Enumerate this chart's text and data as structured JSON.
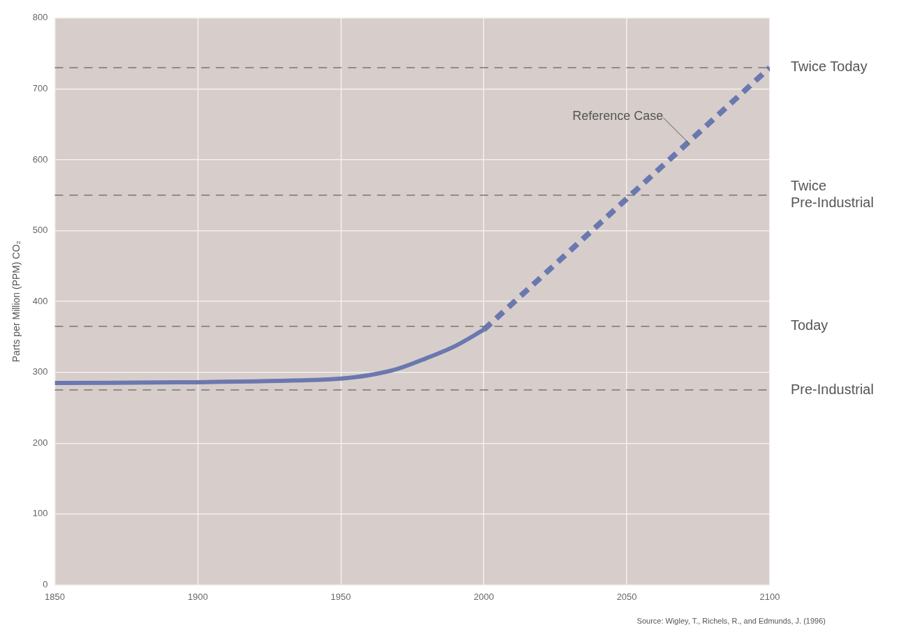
{
  "chart_data": {
    "type": "line",
    "ylabel": "Parts per Million (PPM) CO₂",
    "xlim": [
      1850,
      2100
    ],
    "xticks": [
      1850,
      1900,
      1950,
      2000,
      2050,
      2100
    ],
    "ylim": [
      0,
      800
    ],
    "yticks": [
      0,
      100,
      200,
      300,
      400,
      500,
      600,
      700,
      800
    ],
    "grid": true,
    "legend": false,
    "marker": "none",
    "series": [
      {
        "color": "#6b78b0",
        "line_style": "solid",
        "x": [
          1850,
          1900,
          1940,
          1950,
          1960,
          1970,
          1980,
          1990,
          2000
        ],
        "values": [
          285,
          286,
          289,
          291,
          296,
          305,
          320,
          337,
          360
        ]
      },
      {
        "color": "#6b78b0",
        "line_style": "dashed",
        "x": [
          2000,
          2050,
          2100
        ],
        "values": [
          360,
          545,
          730
        ]
      }
    ],
    "ref_lines": [
      {
        "axis": "y",
        "value": 730,
        "label": "Twice Today",
        "color": "#7a7474",
        "line_style": "dashed"
      },
      {
        "axis": "y",
        "value": 550,
        "label": "Twice\nPre-Industrial",
        "color": "#7a7474",
        "line_style": "dashed"
      },
      {
        "axis": "y",
        "value": 365,
        "label": "Today",
        "color": "#7a7474",
        "line_style": "dashed"
      },
      {
        "axis": "y",
        "value": 275,
        "label": "Pre-Industrial",
        "color": "#7a7474",
        "line_style": "dashed"
      }
    ],
    "annotations": [
      {
        "text": "Reference Case",
        "x": 2072,
        "y": 622
      },
      "Source: Wigley, T., Richels, R., and Edmunds, J. (1996)"
    ]
  }
}
